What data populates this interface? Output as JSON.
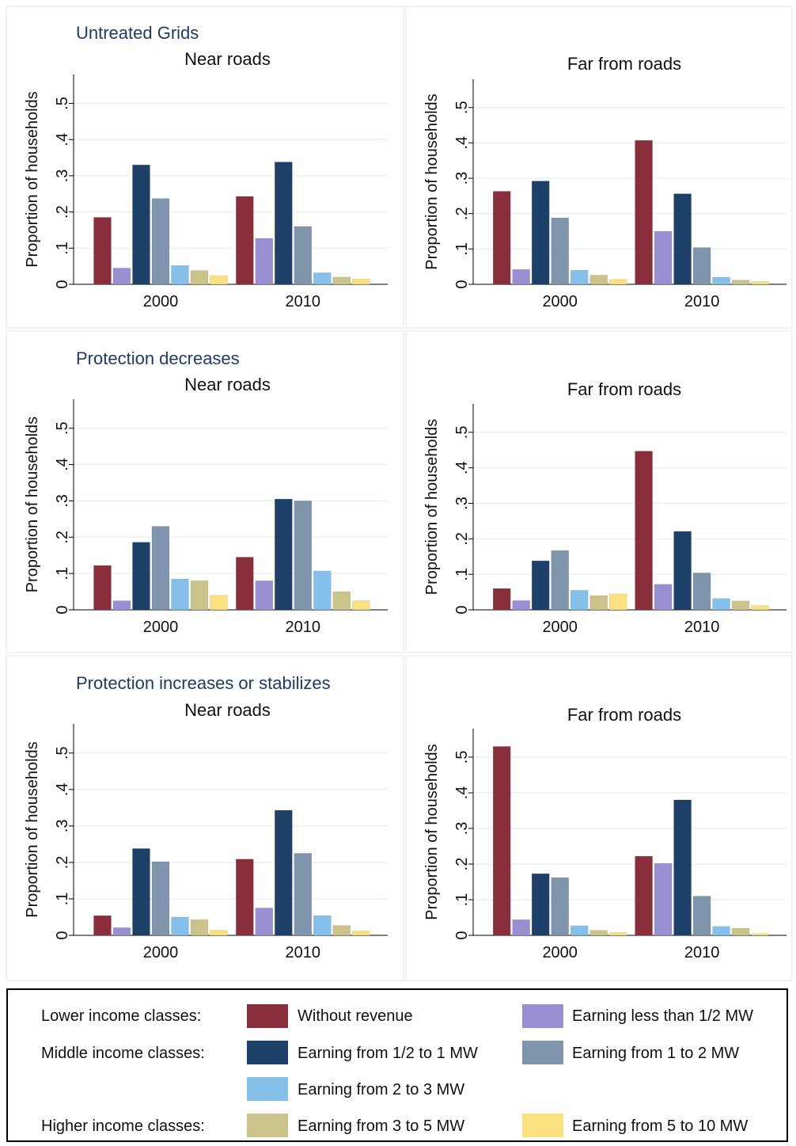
{
  "chart_data": [
    {
      "type": "bar",
      "group_title": "Untreated Grids",
      "title": "Near roads",
      "ylabel": "Proportion of households",
      "ylim": [
        0,
        0.58
      ],
      "yticks": [
        "0",
        ".1",
        ".2",
        ".3",
        ".4",
        ".5"
      ],
      "categories": [
        "2000",
        "2010"
      ],
      "series": [
        {
          "name": "Without revenue",
          "values": [
            0.185,
            0.243
          ]
        },
        {
          "name": "Earning less than 1/2 MW",
          "values": [
            0.045,
            0.127
          ]
        },
        {
          "name": "Earning from 1/2 to 1 MW",
          "values": [
            0.33,
            0.338
          ]
        },
        {
          "name": "Earning from 1 to 2 MW",
          "values": [
            0.237,
            0.16
          ]
        },
        {
          "name": "Earning from 2 to 3 MW",
          "values": [
            0.052,
            0.032
          ]
        },
        {
          "name": "Earning from 3 to 5 MW",
          "values": [
            0.038,
            0.02
          ]
        },
        {
          "name": "Earning from 5 to 10 MW",
          "values": [
            0.024,
            0.015
          ]
        }
      ]
    },
    {
      "type": "bar",
      "group_title": "",
      "title": "Far from roads",
      "ylabel": "Proportion of households",
      "ylim": [
        0,
        0.58
      ],
      "yticks": [
        "0",
        ".1",
        ".2",
        ".3",
        ".4",
        ".5"
      ],
      "categories": [
        "2000",
        "2010"
      ],
      "series": [
        {
          "name": "Without revenue",
          "values": [
            0.263,
            0.407
          ]
        },
        {
          "name": "Earning less than 1/2 MW",
          "values": [
            0.042,
            0.15
          ]
        },
        {
          "name": "Earning from 1/2 to 1 MW",
          "values": [
            0.292,
            0.256
          ]
        },
        {
          "name": "Earning from 1 to 2 MW",
          "values": [
            0.188,
            0.104
          ]
        },
        {
          "name": "Earning from 2 to 3 MW",
          "values": [
            0.04,
            0.02
          ]
        },
        {
          "name": "Earning from 3 to 5 MW",
          "values": [
            0.026,
            0.012
          ]
        },
        {
          "name": "Earning from 5 to 10 MW",
          "values": [
            0.014,
            0.008
          ]
        }
      ]
    },
    {
      "type": "bar",
      "group_title": "Protection decreases",
      "title": "Near roads",
      "ylabel": "Proportion of households",
      "ylim": [
        0,
        0.58
      ],
      "yticks": [
        "0",
        ".1",
        ".2",
        ".3",
        ".4",
        ".5"
      ],
      "categories": [
        "2000",
        "2010"
      ],
      "series": [
        {
          "name": "Without revenue",
          "values": [
            0.122,
            0.145
          ]
        },
        {
          "name": "Earning less than 1/2 MW",
          "values": [
            0.025,
            0.08
          ]
        },
        {
          "name": "Earning from 1/2 to 1 MW",
          "values": [
            0.186,
            0.305
          ]
        },
        {
          "name": "Earning from 1 to 2 MW",
          "values": [
            0.23,
            0.3
          ]
        },
        {
          "name": "Earning from 2 to 3 MW",
          "values": [
            0.085,
            0.107
          ]
        },
        {
          "name": "Earning from 3 to 5 MW",
          "values": [
            0.08,
            0.05
          ]
        },
        {
          "name": "Earning from 5 to 10 MW",
          "values": [
            0.04,
            0.025
          ]
        }
      ]
    },
    {
      "type": "bar",
      "group_title": "",
      "title": "Far from roads",
      "ylabel": "Proportion of households",
      "ylim": [
        0,
        0.58
      ],
      "yticks": [
        "0",
        ".1",
        ".2",
        ".3",
        ".4",
        ".5"
      ],
      "categories": [
        "2000",
        "2010"
      ],
      "series": [
        {
          "name": "Without revenue",
          "values": [
            0.06,
            0.447
          ]
        },
        {
          "name": "Earning less than 1/2 MW",
          "values": [
            0.026,
            0.072
          ]
        },
        {
          "name": "Earning from 1/2 to 1 MW",
          "values": [
            0.138,
            0.221
          ]
        },
        {
          "name": "Earning from 1 to 2 MW",
          "values": [
            0.167,
            0.104
          ]
        },
        {
          "name": "Earning from 2 to 3 MW",
          "values": [
            0.055,
            0.032
          ]
        },
        {
          "name": "Earning from 3 to 5 MW",
          "values": [
            0.04,
            0.025
          ]
        },
        {
          "name": "Earning from 5 to 10 MW",
          "values": [
            0.045,
            0.012
          ]
        }
      ]
    },
    {
      "type": "bar",
      "group_title": "Protection increases or stabilizes",
      "title": "Near roads",
      "ylabel": "Proportion of households",
      "ylim": [
        0,
        0.58
      ],
      "yticks": [
        "0",
        ".1",
        ".2",
        ".3",
        ".4",
        ".5"
      ],
      "categories": [
        "2000",
        "2010"
      ],
      "series": [
        {
          "name": "Without revenue",
          "values": [
            0.054,
            0.209
          ]
        },
        {
          "name": "Earning less than 1/2 MW",
          "values": [
            0.021,
            0.075
          ]
        },
        {
          "name": "Earning from 1/2 to 1 MW",
          "values": [
            0.238,
            0.343
          ]
        },
        {
          "name": "Earning from 1 to 2 MW",
          "values": [
            0.202,
            0.225
          ]
        },
        {
          "name": "Earning from 2 to 3 MW",
          "values": [
            0.05,
            0.054
          ]
        },
        {
          "name": "Earning from 3 to 5 MW",
          "values": [
            0.043,
            0.027
          ]
        },
        {
          "name": "Earning from 5 to 10 MW",
          "values": [
            0.014,
            0.012
          ]
        }
      ]
    },
    {
      "type": "bar",
      "group_title": "",
      "title": "Far from roads",
      "ylabel": "Proportion of households",
      "ylim": [
        0,
        0.58
      ],
      "yticks": [
        "0",
        ".1",
        ".2",
        ".3",
        ".4",
        ".5"
      ],
      "categories": [
        "2000",
        "2010"
      ],
      "series": [
        {
          "name": "Without revenue",
          "values": [
            0.53,
            0.222
          ]
        },
        {
          "name": "Earning less than 1/2 MW",
          "values": [
            0.044,
            0.202
          ]
        },
        {
          "name": "Earning from 1/2 to 1 MW",
          "values": [
            0.173,
            0.38
          ]
        },
        {
          "name": "Earning from 1 to 2 MW",
          "values": [
            0.162,
            0.11
          ]
        },
        {
          "name": "Earning from 2 to 3 MW",
          "values": [
            0.027,
            0.025
          ]
        },
        {
          "name": "Earning from 3 to 5 MW",
          "values": [
            0.014,
            0.02
          ]
        },
        {
          "name": "Earning from 5 to 10 MW",
          "values": [
            0.008,
            0.005
          ]
        }
      ]
    }
  ],
  "colors": [
    "#8b2e3c",
    "#9b8fd4",
    "#1d4068",
    "#7f95ab",
    "#84c0ea",
    "#cbc38a",
    "#fbe07f"
  ],
  "legend": {
    "groups": {
      "lower": "Lower income classes:",
      "middle": "Middle income classes:",
      "higher": "Higher income classes:"
    },
    "items": [
      "Without revenue",
      "Earning less than 1/2 MW",
      "Earning from 1/2 to 1 MW",
      "Earning from 1 to 2 MW",
      "Earning from 2 to 3 MW",
      "Earning from 3 to 5 MW",
      "Earning from 5 to 10 MW"
    ]
  }
}
